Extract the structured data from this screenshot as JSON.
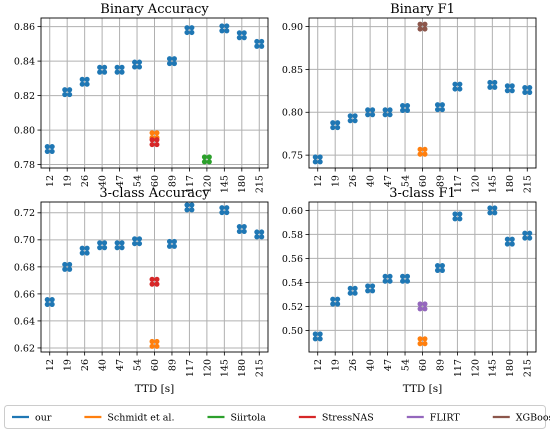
{
  "chart_data": [
    {
      "type": "scatter",
      "title": "Binary Accuracy",
      "xlabel": "",
      "ylabel": "",
      "ylim": [
        0.778,
        0.865
      ],
      "yticks": [
        0.78,
        0.8,
        0.82,
        0.84,
        0.86
      ],
      "ytick_labels": [
        "0.78",
        "0.80",
        "0.82",
        "0.84",
        "0.86"
      ],
      "grid": true,
      "series": [
        {
          "name": "our",
          "color": "#1f77b4",
          "points": [
            [
              "12",
              0.789
            ],
            [
              "19",
              0.822
            ],
            [
              "26",
              0.828
            ],
            [
              "40",
              0.835
            ],
            [
              "47",
              0.835
            ],
            [
              "54",
              0.838
            ],
            [
              "89",
              0.84
            ],
            [
              "117",
              0.858
            ],
            [
              "145",
              0.859
            ],
            [
              "180",
              0.855
            ],
            [
              "215",
              0.85
            ]
          ]
        },
        {
          "name": "Schmidt et al.",
          "color": "#ff7f0e",
          "points": [
            [
              "60",
              0.797
            ]
          ]
        },
        {
          "name": "Siirtola",
          "color": "#2ca02c",
          "points": [
            [
              "120",
              0.783
            ]
          ]
        },
        {
          "name": "StressNAS",
          "color": "#d62728",
          "points": [
            [
              "60",
              0.793
            ]
          ]
        }
      ]
    },
    {
      "type": "scatter",
      "title": "Binary F1",
      "xlabel": "",
      "ylabel": "",
      "ylim": [
        0.735,
        0.91
      ],
      "yticks": [
        0.75,
        0.8,
        0.85,
        0.9
      ],
      "ytick_labels": [
        "0.75",
        "0.80",
        "0.85",
        "0.90"
      ],
      "grid": true,
      "series": [
        {
          "name": "our",
          "color": "#1f77b4",
          "points": [
            [
              "12",
              0.745
            ],
            [
              "19",
              0.785
            ],
            [
              "26",
              0.793
            ],
            [
              "40",
              0.8
            ],
            [
              "47",
              0.8
            ],
            [
              "54",
              0.805
            ],
            [
              "89",
              0.806
            ],
            [
              "117",
              0.83
            ],
            [
              "145",
              0.832
            ],
            [
              "180",
              0.828
            ],
            [
              "215",
              0.826
            ]
          ]
        },
        {
          "name": "Schmidt et al.",
          "color": "#ff7f0e",
          "points": [
            [
              "60",
              0.754
            ]
          ]
        },
        {
          "name": "XGBoost",
          "color": "#8c564b",
          "points": [
            [
              "60",
              0.9
            ]
          ]
        }
      ]
    },
    {
      "type": "scatter",
      "title": "3-class Accuracy",
      "xlabel": "TTD [s]",
      "ylabel": "",
      "ylim": [
        0.617,
        0.728
      ],
      "yticks": [
        0.62,
        0.64,
        0.66,
        0.68,
        0.7,
        0.72
      ],
      "ytick_labels": [
        "0.62",
        "0.64",
        "0.66",
        "0.68",
        "0.70",
        "0.72"
      ],
      "grid": true,
      "series": [
        {
          "name": "our",
          "color": "#1f77b4",
          "points": [
            [
              "12",
              0.654
            ],
            [
              "19",
              0.68
            ],
            [
              "26",
              0.692
            ],
            [
              "40",
              0.696
            ],
            [
              "47",
              0.696
            ],
            [
              "54",
              0.699
            ],
            [
              "89",
              0.697
            ],
            [
              "117",
              0.724
            ],
            [
              "145",
              0.722
            ],
            [
              "180",
              0.708
            ],
            [
              "215",
              0.704
            ]
          ]
        },
        {
          "name": "Schmidt et al.",
          "color": "#ff7f0e",
          "points": [
            [
              "60",
              0.623
            ]
          ]
        },
        {
          "name": "StressNAS",
          "color": "#d62728",
          "points": [
            [
              "60",
              0.669
            ]
          ]
        }
      ]
    },
    {
      "type": "scatter",
      "title": "3-class F1",
      "xlabel": "TTD [s]",
      "ylabel": "",
      "ylim": [
        0.482,
        0.607
      ],
      "yticks": [
        0.5,
        0.52,
        0.54,
        0.56,
        0.58,
        0.6
      ],
      "ytick_labels": [
        "0.50",
        "0.52",
        "0.54",
        "0.56",
        "0.58",
        "0.60"
      ],
      "grid": true,
      "series": [
        {
          "name": "our",
          "color": "#1f77b4",
          "points": [
            [
              "12",
              0.495
            ],
            [
              "19",
              0.524
            ],
            [
              "26",
              0.533
            ],
            [
              "40",
              0.535
            ],
            [
              "47",
              0.543
            ],
            [
              "54",
              0.543
            ],
            [
              "89",
              0.552
            ],
            [
              "117",
              0.595
            ],
            [
              "145",
              0.6
            ],
            [
              "180",
              0.574
            ],
            [
              "215",
              0.579
            ]
          ]
        },
        {
          "name": "Schmidt et al.",
          "color": "#ff7f0e",
          "points": [
            [
              "60",
              0.491
            ]
          ]
        },
        {
          "name": "FLIRT",
          "color": "#9467bd",
          "points": [
            [
              "60",
              0.52
            ]
          ]
        }
      ]
    }
  ],
  "categories": [
    "12",
    "19",
    "26",
    "40",
    "47",
    "54",
    "60",
    "89",
    "117",
    "120",
    "145",
    "180",
    "215"
  ],
  "legend": [
    {
      "name": "our",
      "color": "#1f77b4"
    },
    {
      "name": "Schmidt et al.",
      "color": "#ff7f0e"
    },
    {
      "name": "Siirtola",
      "color": "#2ca02c"
    },
    {
      "name": "StressNAS",
      "color": "#d62728"
    },
    {
      "name": "FLIRT",
      "color": "#9467bd"
    },
    {
      "name": "XGBoost",
      "color": "#8c564b"
    }
  ],
  "legend_placement": "bottom"
}
